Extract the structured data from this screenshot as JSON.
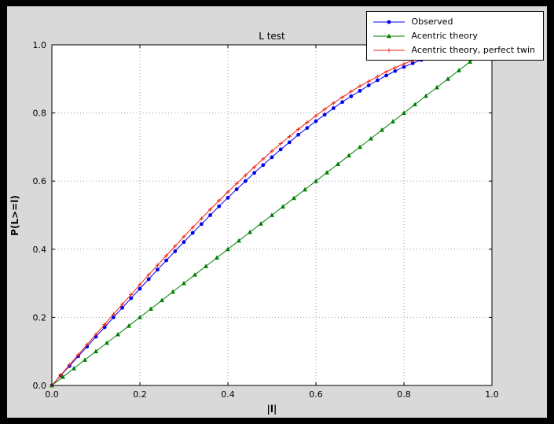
{
  "chart_data": {
    "type": "line",
    "title": "L test",
    "xlabel": "|l|",
    "ylabel": "P(L>=l)",
    "xlim": [
      0.0,
      1.0
    ],
    "ylim": [
      0.0,
      1.0
    ],
    "xticks": [
      0.0,
      0.2,
      0.4,
      0.6,
      0.8,
      1.0
    ],
    "yticks": [
      0.0,
      0.2,
      0.4,
      0.6,
      0.8,
      1.0
    ],
    "grid": "dotted",
    "legend_position": "upper right",
    "plot_bg": "#ffffff",
    "figure_bg": "#d9d9d9",
    "grid_color": "#999999",
    "series": [
      {
        "name": "Observed",
        "color": "#0000ee",
        "marker": "circle",
        "x": [
          0.0,
          0.02,
          0.04,
          0.06,
          0.08,
          0.1,
          0.12,
          0.14,
          0.16,
          0.18,
          0.2,
          0.22,
          0.24,
          0.26,
          0.28,
          0.3,
          0.32,
          0.34,
          0.36,
          0.38,
          0.4,
          0.42,
          0.44,
          0.46,
          0.48,
          0.5,
          0.52,
          0.54,
          0.56,
          0.58,
          0.6,
          0.62,
          0.64,
          0.66,
          0.68,
          0.7,
          0.72,
          0.74,
          0.76,
          0.78,
          0.8,
          0.82,
          0.84,
          0.86
        ],
        "y": [
          0.0,
          0.029,
          0.057,
          0.086,
          0.114,
          0.143,
          0.171,
          0.2,
          0.228,
          0.256,
          0.284,
          0.312,
          0.34,
          0.367,
          0.394,
          0.421,
          0.448,
          0.474,
          0.5,
          0.526,
          0.551,
          0.576,
          0.6,
          0.624,
          0.647,
          0.67,
          0.693,
          0.714,
          0.736,
          0.756,
          0.776,
          0.795,
          0.814,
          0.832,
          0.849,
          0.865,
          0.881,
          0.896,
          0.91,
          0.923,
          0.935,
          0.946,
          0.956,
          0.965
        ]
      },
      {
        "name": "Acentric theory",
        "color": "#007f00",
        "marker": "triangle",
        "x": [
          0.0,
          0.025,
          0.05,
          0.075,
          0.1,
          0.125,
          0.15,
          0.175,
          0.2,
          0.225,
          0.25,
          0.275,
          0.3,
          0.325,
          0.35,
          0.375,
          0.4,
          0.425,
          0.45,
          0.475,
          0.5,
          0.525,
          0.55,
          0.575,
          0.6,
          0.625,
          0.65,
          0.675,
          0.7,
          0.725,
          0.75,
          0.775,
          0.8,
          0.825,
          0.85,
          0.875,
          0.9,
          0.925,
          0.95,
          0.975
        ],
        "y": [
          0.0,
          0.025,
          0.05,
          0.075,
          0.1,
          0.125,
          0.15,
          0.175,
          0.2,
          0.225,
          0.25,
          0.275,
          0.3,
          0.325,
          0.35,
          0.375,
          0.4,
          0.425,
          0.45,
          0.475,
          0.5,
          0.525,
          0.55,
          0.575,
          0.6,
          0.625,
          0.65,
          0.675,
          0.7,
          0.725,
          0.75,
          0.775,
          0.8,
          0.825,
          0.85,
          0.875,
          0.9,
          0.925,
          0.95,
          0.975
        ]
      },
      {
        "name": "Acentric theory, perfect twin",
        "color": "#ee2211",
        "marker": "plus",
        "x": [
          0.0,
          0.02,
          0.04,
          0.06,
          0.08,
          0.1,
          0.12,
          0.14,
          0.16,
          0.18,
          0.2,
          0.22,
          0.24,
          0.26,
          0.28,
          0.3,
          0.32,
          0.34,
          0.36,
          0.38,
          0.4,
          0.42,
          0.44,
          0.46,
          0.48,
          0.5,
          0.52,
          0.54,
          0.56,
          0.58,
          0.6,
          0.62,
          0.64,
          0.66,
          0.68,
          0.7,
          0.72,
          0.74,
          0.76,
          0.78,
          0.8,
          0.82,
          0.84,
          0.86,
          0.88,
          0.9
        ],
        "y": [
          0.0,
          0.03,
          0.06,
          0.09,
          0.12,
          0.15,
          0.179,
          0.209,
          0.238,
          0.267,
          0.296,
          0.325,
          0.353,
          0.381,
          0.409,
          0.437,
          0.464,
          0.49,
          0.517,
          0.543,
          0.568,
          0.593,
          0.617,
          0.641,
          0.665,
          0.688,
          0.71,
          0.731,
          0.752,
          0.772,
          0.792,
          0.811,
          0.829,
          0.846,
          0.863,
          0.879,
          0.893,
          0.907,
          0.921,
          0.933,
          0.944,
          0.954,
          0.964,
          0.972,
          0.979,
          0.986
        ]
      }
    ]
  }
}
